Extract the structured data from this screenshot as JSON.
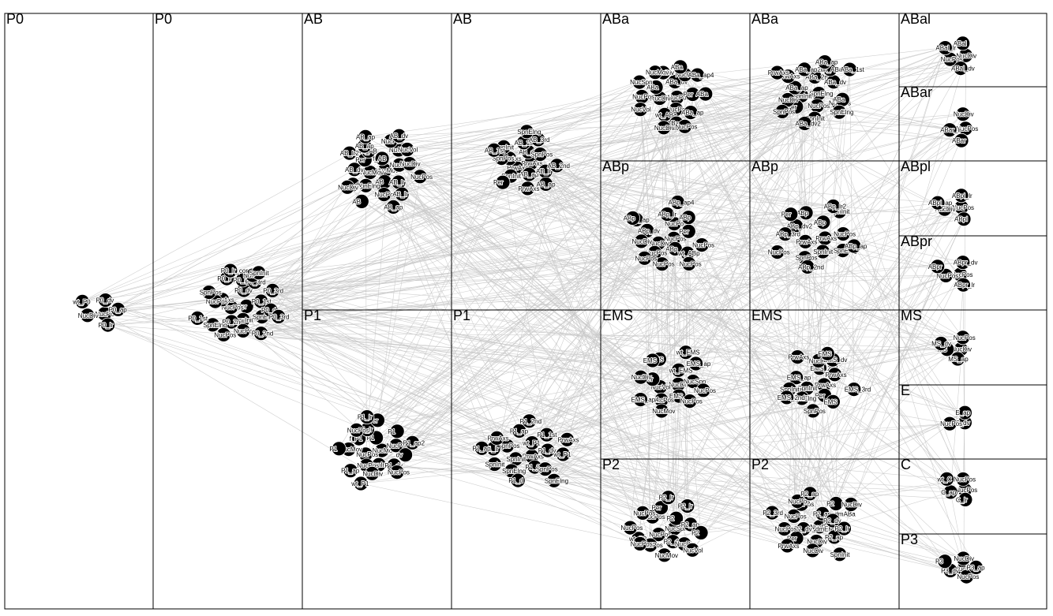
{
  "cells": [
    {
      "id": "c1",
      "label": "P0"
    },
    {
      "id": "c2",
      "label": "P0"
    },
    {
      "id": "c3",
      "label": "AB"
    },
    {
      "id": "c4",
      "label": "P1"
    },
    {
      "id": "c5",
      "label": "AB"
    },
    {
      "id": "c6",
      "label": "P1"
    },
    {
      "id": "c7",
      "label": "ABa"
    },
    {
      "id": "c8",
      "label": "ABp"
    },
    {
      "id": "c9",
      "label": "EMS"
    },
    {
      "id": "c10",
      "label": "P2"
    },
    {
      "id": "c11",
      "label": "ABa"
    },
    {
      "id": "c12",
      "label": "ABp"
    },
    {
      "id": "c13",
      "label": "EMS"
    },
    {
      "id": "c14",
      "label": "P2"
    },
    {
      "id": "c15",
      "label": "ABal"
    },
    {
      "id": "c16",
      "label": "ABar"
    },
    {
      "id": "c17",
      "label": "ABpl"
    },
    {
      "id": "c18",
      "label": "ABpr"
    },
    {
      "id": "c19",
      "label": "MS"
    },
    {
      "id": "c20",
      "label": "E"
    },
    {
      "id": "c21",
      "label": "C"
    },
    {
      "id": "c22",
      "label": "P3"
    }
  ],
  "clusters": [
    {
      "cell": "c1",
      "labels": [
        "NucPos",
        "NucDiv",
        "P0_dv",
        "P0_lr",
        "wt_P0",
        "P0_ap"
      ]
    },
    {
      "cell": "c2",
      "labels": [
        "Per",
        "NucPos",
        "P0_dv",
        "SpnInit",
        "PrwAxs",
        "P0_1st",
        "P0_2nd",
        "P0_ap",
        "SpnElng",
        "NucPos",
        "P0_3rd",
        "NucPos",
        "P0_lr",
        "P0_d",
        "SpnElng",
        "NucPos",
        "P0_2nd",
        "SpnPos",
        "P0_3rd",
        "NucPos",
        "P0_lr_cor",
        "P0_3rd",
        "P0_1st",
        "SpnInit"
      ]
    },
    {
      "cell": "c3",
      "labels": [
        "NucMov",
        "NucMov",
        "f_AB",
        "AB",
        "Per",
        "NucPos",
        "SpnElng",
        "wt_AB",
        "AB_lr",
        "AB_dv",
        "NucPos",
        "NucPos",
        "AB_ap",
        "NucDiv",
        "AB_dv",
        "NucPos",
        "AB_lr",
        "AB_lr2",
        "NucVol",
        "AB",
        "AB_ap",
        "NucPos",
        "NucDiv",
        "AB_dv",
        "AB_ap"
      ]
    },
    {
      "cell": "c4",
      "labels": [
        "NucMov",
        "NucPos",
        "P1",
        "SpnInit",
        "f_P1",
        "NucPos",
        "NucPos",
        "P1_lr",
        "P1_dv",
        "NucMov",
        "P1",
        "NucDiv",
        "NucPos",
        "dv",
        "P1_ap",
        "Per",
        "NucPos",
        "P1",
        "P1_ap2",
        "wt_P1",
        "P1_lr"
      ]
    },
    {
      "cell": "c5",
      "labels": [
        "PrwAxs",
        "PrwAxs",
        "AB_dv",
        "AB_ap",
        "PrwAxs",
        "SpnPos",
        "SpnInit",
        "AB_1st",
        "AB_lr",
        "SpnPos",
        "AB_3rd",
        "PrwAxs",
        "SpnInit",
        "AB_2nd",
        "Per",
        "SpnElng",
        "AB_ap",
        "AB_1st"
      ]
    },
    {
      "cell": "c6",
      "labels": [
        "PrwAxs",
        "SpnInit",
        "wt_P1",
        "P1_3rd",
        "SpnPos",
        "P1_dv",
        "SpnElng",
        "P1_ap",
        "SpnPos",
        "P1_lr",
        "P1_1st",
        "P1_d",
        "PrwAxs",
        "wt_P1",
        "SpnInit",
        "P1_2nd",
        "SpnElng",
        "P1_ap",
        "PrwAxs"
      ]
    },
    {
      "cell": "c7",
      "labels": [
        "NucPos",
        "NucDiv",
        "ABa_dv",
        "NucPos",
        "ABa",
        "Per",
        "wt_ABa",
        "NucDiv",
        "ABa_ap",
        "NucPos",
        "NucPos",
        "ABa",
        "NucMov",
        "ABa",
        "NucVol",
        "ABa",
        "NucPos",
        "NucSpn",
        "ABa_ap4",
        "NucDiv"
      ]
    },
    {
      "cell": "c8",
      "labels": [
        "NucPos",
        "NucDiv",
        "NucPos",
        "ABp",
        "ABp_dv",
        "Per",
        "NucPos",
        "ABp_lr",
        "wt_ABp",
        "NucDiv",
        "ABp",
        "NucPos",
        "ABp_ap",
        "NucPos",
        "NucPos",
        "ABp_ap4",
        "NucPos",
        "ABp"
      ]
    },
    {
      "cell": "c9",
      "labels": [
        "NucDiv",
        "NucVol",
        "wt_EMS",
        "EMS",
        "Per",
        "NucSpn",
        "NucPos",
        "EMS",
        "NucPos",
        "NucDiv",
        "EMS_ap",
        "NucMov",
        "EMS",
        "NucPos",
        "EMS_ap4",
        "wt_EMS"
      ]
    },
    {
      "cell": "c10",
      "labels": [
        "NucSpn",
        "NucPos",
        "P2",
        "P2_dv",
        "NucPos",
        "P2_ap",
        "NucPos",
        "Per",
        "NucDiv",
        "wt_P2",
        "P2_lr",
        "NucMov",
        "NucPos",
        "P2",
        "NucPos",
        "P2_lr",
        "NucVol",
        "NucPos"
      ]
    },
    {
      "cell": "c11",
      "labels": [
        "SpnElng",
        "SpnInit",
        "ABa_2nd",
        "NucPos",
        "ABa_ap",
        "ABa_dv",
        "Per",
        "ABa_ap2",
        "NucPos",
        "NucDiv",
        "wt_ABa",
        "SpnInit",
        "PrwAxs",
        "ABa",
        "SpnPos",
        "ABa_ap",
        "SpnElng",
        "PrwAxs",
        "ABa_1st",
        "ABa_dv2"
      ]
    },
    {
      "cell": "c12",
      "labels": [
        "PrwAxs",
        "PrwAxs",
        "ABp",
        "SpnInit",
        "ABp_dv2",
        "NucPos",
        "SpnPos",
        "ABp",
        "SpnElng",
        "ABp_3rd",
        "SpnInit",
        "ABp_2nd",
        "Per",
        "ABp_ap",
        "NucPos",
        "ABp_lr2"
      ]
    },
    {
      "cell": "c13",
      "labels": [
        "PrwAxs",
        "SpnInit",
        "EMS_2nd",
        "Per",
        "EMS_ap",
        "PrwAxs",
        "SpnElng",
        "NucDiv",
        "EMS",
        "SpnInit",
        "EMS_dv",
        "SpnPos",
        "PrwAxs",
        "EMS_3rd",
        "EMS_2nd",
        "EMS"
      ]
    },
    {
      "cell": "c14",
      "labels": [
        "NucPos",
        "P2_dv_dmEMS",
        "P2_ap_dmABa",
        "NucDiv",
        "NucPos",
        "P2_dv",
        "Per",
        "NucPos",
        "P2_ap",
        "NucPos",
        "P2",
        "NucDiv",
        "NucPos",
        "P2_lr",
        "PrwAxs",
        "P2_ap",
        "SpnInit",
        "P2_3rd",
        "NucDiv"
      ]
    },
    {
      "cell": "c15",
      "labels": [
        "NucDiv",
        "NucPos",
        "ABal",
        "ABal_dv",
        "ABal_lr"
      ]
    },
    {
      "cell": "c16",
      "labels": [
        "NucPos",
        "ABar_lr",
        "NucDiv",
        "ABar"
      ]
    },
    {
      "cell": "c17",
      "labels": [
        "NucPos",
        "NucDiv",
        "ABpl_lr",
        "ABpl",
        "ABpl_ap"
      ]
    },
    {
      "cell": "c18",
      "labels": [
        "NucPos",
        "NucPos",
        "ABpr_dv",
        "ABpr_lr",
        "ABpr"
      ]
    },
    {
      "cell": "c19",
      "labels": [
        "NucDiv",
        "MS",
        "NucPos",
        "MS_ap",
        "MS_dv"
      ]
    },
    {
      "cell": "c20",
      "labels": [
        "E_dv",
        "NucPos",
        "E_ap"
      ]
    },
    {
      "cell": "c21",
      "labels": [
        "NucPos",
        "C_ap",
        "NucPos",
        "C_lr",
        "wt_C"
      ]
    },
    {
      "cell": "c22",
      "labels": [
        "NucPos",
        "P3_dv",
        "NucDiv",
        "NucPos",
        "P3",
        "P3_ap"
      ]
    }
  ],
  "colors": {
    "node": "#000000",
    "edge": "#c8c8c8",
    "border": "#000000",
    "background": "#ffffff"
  }
}
